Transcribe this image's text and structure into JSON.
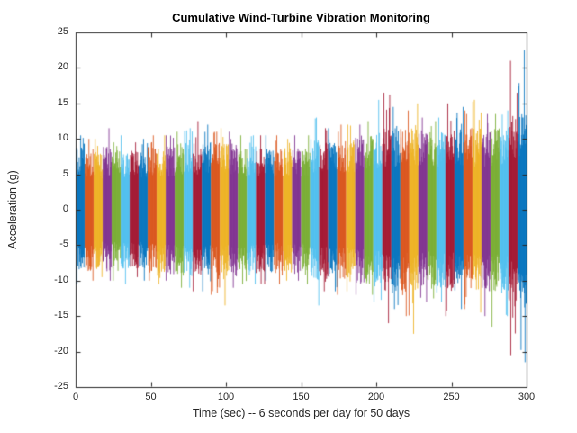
{
  "chart_data": {
    "type": "line",
    "title": "Cumulative Wind-Turbine Vibration Monitoring",
    "xlabel": "Time (sec) -- 6 seconds per day for 50 days",
    "ylabel": "Acceleration (g)",
    "xlim": [
      0,
      300
    ],
    "ylim": [
      -25,
      25
    ],
    "xticks": [
      0,
      50,
      100,
      150,
      200,
      250,
      300
    ],
    "yticks": [
      -25,
      -20,
      -15,
      -10,
      -5,
      0,
      5,
      10,
      15,
      20,
      25
    ],
    "grid": false,
    "legend": "none",
    "num_days": 50,
    "seconds_per_day": 6,
    "description": "Dense zero-mean vibration noise, one color band per day, amplitude growing over 50 days",
    "series_colors": [
      "#0072BD",
      "#D95319",
      "#EDB120",
      "#7E2F8E",
      "#77AC30",
      "#4DBEEE",
      "#A2142F"
    ],
    "axis_color": "#262626",
    "days": [
      {
        "amp": 8.5,
        "peak": 10.5,
        "dip": 10.5
      },
      {
        "amp": 8.5,
        "peak": 10.0,
        "dip": 10.0
      },
      {
        "amp": 8.0,
        "peak": 10.0,
        "dip": 9.5
      },
      {
        "amp": 8.5,
        "peak": 11.5,
        "dip": 10.0
      },
      {
        "amp": 8.0,
        "peak": 9.5,
        "dip": 10.0
      },
      {
        "amp": 8.0,
        "peak": 10.5,
        "dip": 10.5
      },
      {
        "amp": 8.0,
        "peak": 9.5,
        "dip": 9.5
      },
      {
        "amp": 8.0,
        "peak": 10.0,
        "dip": 10.0
      },
      {
        "amp": 8.5,
        "peak": 10.5,
        "dip": 10.0
      },
      {
        "amp": 8.5,
        "peak": 10.5,
        "dip": 10.5
      },
      {
        "amp": 8.5,
        "peak": 10.5,
        "dip": 10.0
      },
      {
        "amp": 9.0,
        "peak": 11.0,
        "dip": 11.0
      },
      {
        "amp": 9.0,
        "peak": 11.5,
        "dip": 11.0
      },
      {
        "amp": 9.0,
        "peak": 12.5,
        "dip": 11.5
      },
      {
        "amp": 9.0,
        "peak": 12.0,
        "dip": 11.5
      },
      {
        "amp": 9.0,
        "peak": 11.0,
        "dip": 12.0
      },
      {
        "amp": 9.0,
        "peak": 11.5,
        "dip": 13.5
      },
      {
        "amp": 9.0,
        "peak": 11.0,
        "dip": 11.0
      },
      {
        "amp": 8.5,
        "peak": 10.5,
        "dip": 10.5
      },
      {
        "amp": 8.5,
        "peak": 10.5,
        "dip": 10.5
      },
      {
        "amp": 8.5,
        "peak": 10.5,
        "dip": 10.5
      },
      {
        "amp": 8.5,
        "peak": 10.5,
        "dip": 10.0
      },
      {
        "amp": 8.5,
        "peak": 10.5,
        "dip": 10.5
      },
      {
        "amp": 8.5,
        "peak": 10.0,
        "dip": 10.0
      },
      {
        "amp": 8.5,
        "peak": 10.5,
        "dip": 10.0
      },
      {
        "amp": 8.5,
        "peak": 10.5,
        "dip": 10.5
      },
      {
        "amp": 9.5,
        "peak": 13.0,
        "dip": 13.5
      },
      {
        "amp": 9.5,
        "peak": 11.5,
        "dip": 11.5
      },
      {
        "amp": 9.5,
        "peak": 11.5,
        "dip": 11.5
      },
      {
        "amp": 9.5,
        "peak": 12.0,
        "dip": 12.0
      },
      {
        "amp": 9.5,
        "peak": 12.0,
        "dip": 11.5
      },
      {
        "amp": 10.0,
        "peak": 12.0,
        "dip": 12.0
      },
      {
        "amp": 10.0,
        "peak": 12.5,
        "dip": 12.0
      },
      {
        "amp": 10.5,
        "peak": 15.5,
        "dip": 13.0
      },
      {
        "amp": 11.0,
        "peak": 16.5,
        "dip": 16.0
      },
      {
        "amp": 11.0,
        "peak": 14.5,
        "dip": 14.0
      },
      {
        "amp": 11.0,
        "peak": 14.0,
        "dip": 15.0
      },
      {
        "amp": 11.0,
        "peak": 15.0,
        "dip": 17.5
      },
      {
        "amp": 10.5,
        "peak": 13.0,
        "dip": 13.0
      },
      {
        "amp": 10.5,
        "peak": 12.5,
        "dip": 12.5
      },
      {
        "amp": 10.5,
        "peak": 13.0,
        "dip": 13.0
      },
      {
        "amp": 11.0,
        "peak": 15.0,
        "dip": 15.0
      },
      {
        "amp": 11.0,
        "peak": 14.5,
        "dip": 14.0
      },
      {
        "amp": 11.0,
        "peak": 14.0,
        "dip": 14.0
      },
      {
        "amp": 11.0,
        "peak": 15.5,
        "dip": 14.5
      },
      {
        "amp": 11.0,
        "peak": 13.5,
        "dip": 15.0
      },
      {
        "amp": 11.0,
        "peak": 13.5,
        "dip": 16.5
      },
      {
        "amp": 11.5,
        "peak": 14.0,
        "dip": 15.0
      },
      {
        "amp": 13.0,
        "peak": 21.0,
        "dip": 20.5
      },
      {
        "amp": 13.5,
        "peak": 22.5,
        "dip": 21.5
      }
    ]
  }
}
